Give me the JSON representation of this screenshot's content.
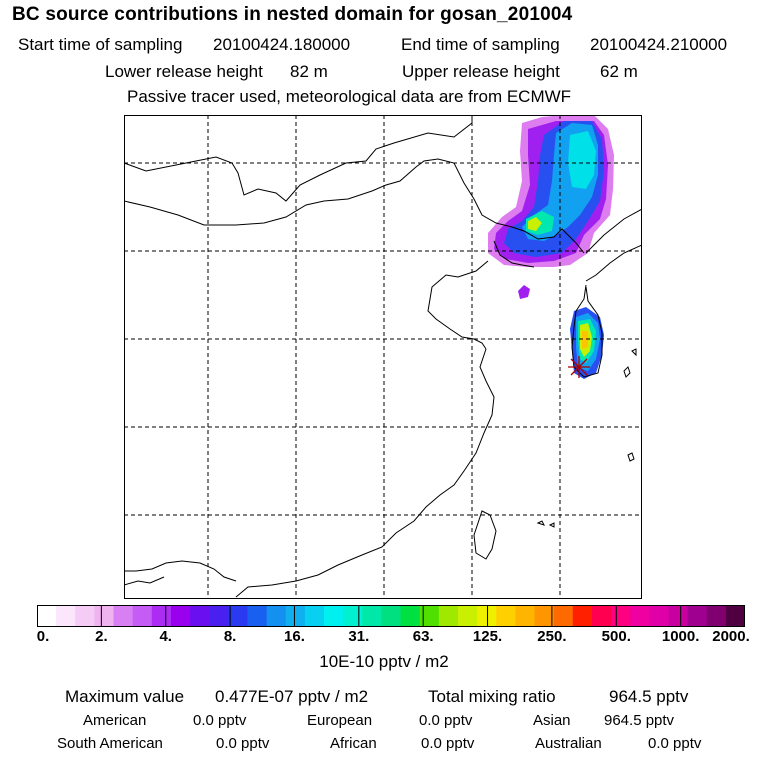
{
  "header": {
    "title": "BC  source contributions in nested domain for gosan_201004",
    "start_label": "Start time of sampling",
    "start_value": "20100424.180000",
    "end_label": "End time of sampling",
    "end_value": "20100424.210000",
    "lower_label": "Lower release height",
    "lower_value": "82 m",
    "upper_label": "Upper release height",
    "upper_value": "62 m",
    "tracer_note": "Passive tracer used, meteorological data are from ECMWF"
  },
  "colorbar": {
    "colors": [
      "#ffffff",
      "#fbe6fb",
      "#f5ccf5",
      "#efb3ef",
      "#d77ff3",
      "#c55cf3",
      "#ad2cf3",
      "#9900ee",
      "#6a10f0",
      "#4a20f0",
      "#2a3af0",
      "#1a60f0",
      "#1490f0",
      "#10b0f0",
      "#08d0f0",
      "#00f0f0",
      "#00f0d0",
      "#00e8a8",
      "#00e080",
      "#00e040",
      "#50e000",
      "#a0e800",
      "#c8f000",
      "#eef000",
      "#ffd000",
      "#ffb400",
      "#ff9600",
      "#ff6a00",
      "#ff2000",
      "#ff0050",
      "#ff0080",
      "#f000a0",
      "#e000a8",
      "#c800a0",
      "#a00090",
      "#800070",
      "#500040"
    ],
    "tick_labels": [
      "0.",
      "2.",
      "4.",
      "8.",
      "16.",
      "31.",
      "63.",
      "125.",
      "250.",
      "500.",
      "1000.",
      "2000."
    ],
    "unit": "10E-10 pptv / m2"
  },
  "summary": {
    "max_label": "Maximum value",
    "max_value": "0.477E-07 pptv / m2",
    "total_label": "Total mixing ratio",
    "total_value": "964.5 pptv"
  },
  "sources": {
    "american_label": "American",
    "american_value": "0.0 pptv",
    "european_label": "European",
    "european_value": "0.0 pptv",
    "asian_label": "Asian",
    "asian_value": "964.5 pptv",
    "south_american_label": "South American",
    "south_american_value": "0.0 pptv",
    "african_label": "African",
    "african_value": "0.0 pptv",
    "australian_label": "Australian",
    "australian_value": "0.0 pptv"
  }
}
